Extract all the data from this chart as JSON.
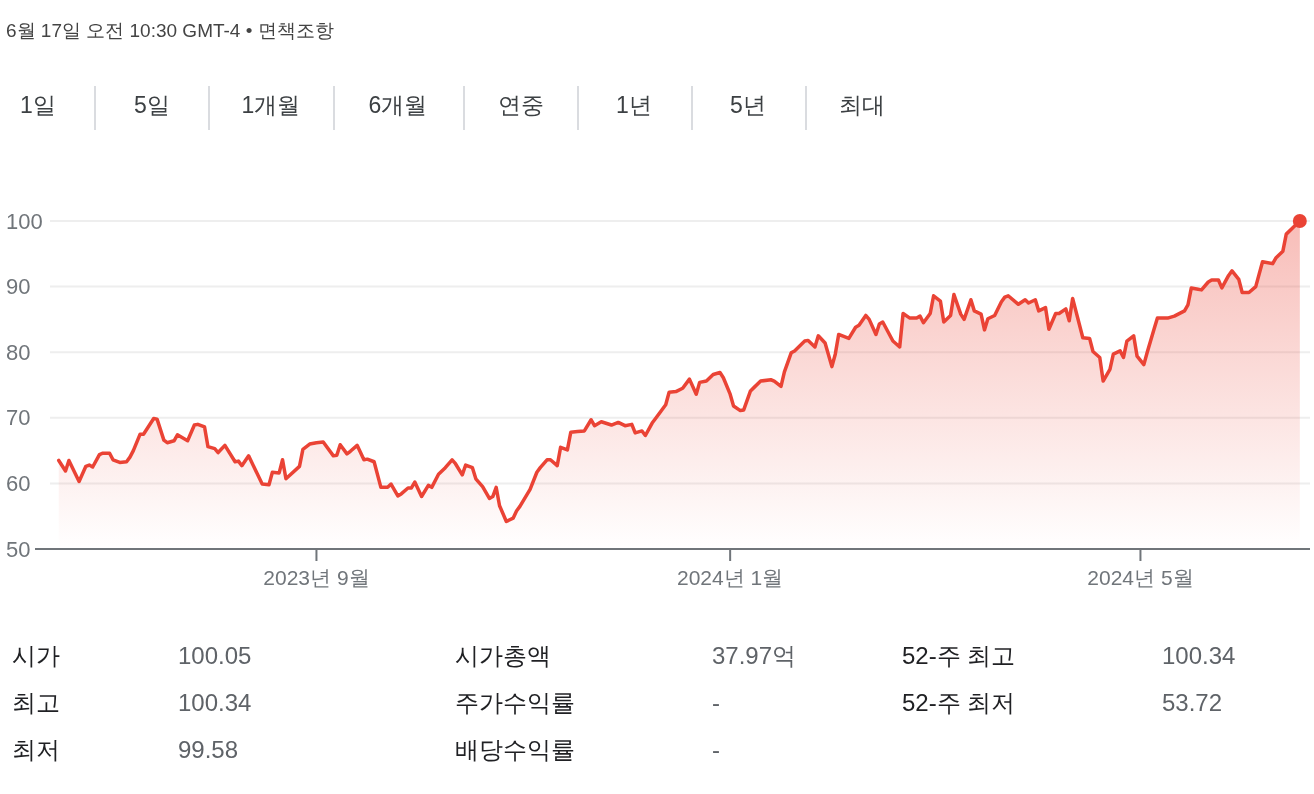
{
  "chart_data": {
    "type": "area",
    "x": [
      "2023-06-17",
      "2023-06-19",
      "2023-06-20",
      "2023-06-23",
      "2023-06-25",
      "2023-06-26",
      "2023-06-27",
      "2023-06-29",
      "2023-06-30",
      "2023-07-02",
      "2023-07-03",
      "2023-07-05",
      "2023-07-07",
      "2023-07-08",
      "2023-07-09",
      "2023-07-11",
      "2023-07-12",
      "2023-07-15",
      "2023-07-16",
      "2023-07-18",
      "2023-07-19",
      "2023-07-21",
      "2023-07-22",
      "2023-07-25",
      "2023-07-27",
      "2023-07-28",
      "2023-07-30",
      "2023-07-31",
      "2023-08-02",
      "2023-08-03",
      "2023-08-05",
      "2023-08-08",
      "2023-08-09",
      "2023-08-10",
      "2023-08-12",
      "2023-08-16",
      "2023-08-18",
      "2023-08-19",
      "2023-08-21",
      "2023-08-22",
      "2023-08-23",
      "2023-08-27",
      "2023-08-28",
      "2023-08-30",
      "2023-09-01",
      "2023-09-03",
      "2023-09-06",
      "2023-09-07",
      "2023-09-08",
      "2023-09-10",
      "2023-09-11",
      "2023-09-13",
      "2023-09-15",
      "2023-09-16",
      "2023-09-18",
      "2023-09-20",
      "2023-09-22",
      "2023-09-23",
      "2023-09-25",
      "2023-09-26",
      "2023-09-28",
      "2023-09-29",
      "2023-09-30",
      "2023-10-02",
      "2023-10-04",
      "2023-10-05",
      "2023-10-07",
      "2023-10-09",
      "2023-10-11",
      "2023-10-12",
      "2023-10-14",
      "2023-10-15",
      "2023-10-17",
      "2023-10-18",
      "2023-10-20",
      "2023-10-22",
      "2023-10-23",
      "2023-10-24",
      "2023-10-25",
      "2023-10-27",
      "2023-10-29",
      "2023-10-30",
      "2023-10-31",
      "2023-11-03",
      "2023-11-05",
      "2023-11-06",
      "2023-11-08",
      "2023-11-09",
      "2023-11-11",
      "2023-11-12",
      "2023-11-14",
      "2023-11-15",
      "2023-11-17",
      "2023-11-19",
      "2023-11-21",
      "2023-11-22",
      "2023-11-24",
      "2023-11-27",
      "2023-11-29",
      "2023-12-01",
      "2023-12-03",
      "2023-12-04",
      "2023-12-06",
      "2023-12-07",
      "2023-12-09",
      "2023-12-10",
      "2023-12-13",
      "2023-12-14",
      "2023-12-16",
      "2023-12-18",
      "2023-12-20",
      "2023-12-22",
      "2023-12-23",
      "2023-12-25",
      "2023-12-27",
      "2023-12-29",
      "2023-12-30",
      "2024-01-01",
      "2024-01-02",
      "2024-01-04",
      "2024-01-05",
      "2024-01-07",
      "2024-01-08",
      "2024-01-10",
      "2024-01-13",
      "2024-01-14",
      "2024-01-16",
      "2024-01-17",
      "2024-01-19",
      "2024-01-20",
      "2024-01-23",
      "2024-01-24",
      "2024-01-26",
      "2024-01-27",
      "2024-01-29",
      "2024-01-31",
      "2024-02-01",
      "2024-02-02",
      "2024-02-05",
      "2024-02-07",
      "2024-02-08",
      "2024-02-10",
      "2024-02-11",
      "2024-02-13",
      "2024-02-14",
      "2024-02-15",
      "2024-02-18",
      "2024-02-20",
      "2024-02-21",
      "2024-02-23",
      "2024-02-25",
      "2024-02-26",
      "2024-02-27",
      "2024-02-29",
      "2024-03-01",
      "2024-03-03",
      "2024-03-04",
      "2024-03-06",
      "2024-03-07",
      "2024-03-09",
      "2024-03-10",
      "2024-03-12",
      "2024-03-13",
      "2024-03-15",
      "2024-03-16",
      "2024-03-17",
      "2024-03-19",
      "2024-03-21",
      "2024-03-22",
      "2024-03-23",
      "2024-03-26",
      "2024-03-28",
      "2024-03-29",
      "2024-03-31",
      "2024-04-01",
      "2024-04-03",
      "2024-04-04",
      "2024-04-06",
      "2024-04-07",
      "2024-04-09",
      "2024-04-10",
      "2024-04-11",
      "2024-04-14",
      "2024-04-16",
      "2024-04-17",
      "2024-04-19",
      "2024-04-20",
      "2024-04-22",
      "2024-04-23",
      "2024-04-25",
      "2024-04-26",
      "2024-04-27",
      "2024-04-29",
      "2024-04-30",
      "2024-05-02",
      "2024-05-03",
      "2024-05-05",
      "2024-05-06",
      "2024-05-09",
      "2024-05-11",
      "2024-05-14",
      "2024-05-15",
      "2024-05-16",
      "2024-05-18",
      "2024-05-19",
      "2024-05-21",
      "2024-05-22",
      "2024-05-24",
      "2024-05-25",
      "2024-05-27",
      "2024-05-28",
      "2024-05-30",
      "2024-05-31",
      "2024-06-02",
      "2024-06-04",
      "2024-06-06",
      "2024-06-09",
      "2024-06-10",
      "2024-06-12",
      "2024-06-13",
      "2024-06-15",
      "2024-06-17"
    ],
    "series": [
      {
        "color": "#ea4335",
        "values": [
          63.5,
          61.9,
          63.5,
          60.3,
          62.6,
          62.8,
          62.5,
          64.4,
          64.6,
          64.6,
          63.6,
          63.2,
          63.3,
          64.0,
          65.0,
          67.5,
          67.5,
          69.9,
          69.8,
          66.6,
          66.2,
          66.5,
          67.4,
          66.5,
          68.9,
          69.0,
          68.6,
          65.6,
          65.3,
          64.7,
          65.8,
          63.3,
          63.4,
          62.7,
          64.2,
          59.9,
          59.8,
          61.7,
          61.6,
          63.6,
          60.7,
          62.6,
          65.2,
          66.0,
          66.2,
          66.3,
          64.2,
          64.3,
          65.9,
          64.5,
          64.9,
          65.8,
          63.6,
          63.7,
          63.3,
          59.4,
          59.4,
          59.9,
          58.1,
          58.4,
          59.3,
          59.3,
          60.2,
          58.0,
          59.7,
          59.4,
          61.4,
          62.4,
          63.6,
          63.0,
          61.3,
          62.8,
          62.4,
          60.7,
          59.5,
          57.7,
          58.0,
          59.4,
          56.6,
          54.2,
          54.7,
          55.8,
          56.5,
          59.1,
          61.7,
          62.4,
          63.6,
          63.6,
          62.7,
          65.5,
          65.1,
          67.8,
          67.9,
          68.0,
          69.7,
          68.8,
          69.4,
          68.9,
          69.3,
          68.8,
          69.0,
          67.7,
          68.0,
          67.3,
          69.2,
          69.9,
          72.0,
          73.9,
          74.0,
          74.5,
          75.9,
          73.6,
          75.4,
          75.6,
          76.6,
          76.9,
          76.1,
          73.6,
          71.8,
          71.1,
          71.2,
          74.1,
          74.6,
          75.6,
          75.8,
          75.6,
          74.8,
          77.0,
          79.9,
          80.2,
          81.7,
          81.8,
          80.8,
          82.5,
          81.4,
          77.8,
          79.7,
          82.7,
          82.1,
          83.8,
          84.1,
          85.6,
          85.0,
          82.7,
          84.3,
          84.6,
          81.7,
          80.8,
          85.9,
          85.2,
          85.2,
          85.5,
          84.5,
          85.9,
          88.6,
          87.8,
          84.6,
          85.6,
          88.8,
          85.8,
          85.0,
          88.0,
          86.3,
          85.8,
          83.4,
          85.1,
          85.6,
          87.7,
          88.4,
          88.6,
          87.3,
          88.0,
          87.5,
          88.0,
          86.3,
          86.8,
          83.5,
          85.9,
          85.9,
          86.6,
          84.8,
          88.2,
          82.2,
          82.1,
          80.1,
          79.2,
          75.6,
          77.4,
          79.7,
          80.2,
          79.2,
          81.7,
          82.5,
          79.4,
          78.1,
          80.0,
          83.5,
          85.2,
          85.2,
          85.5,
          86.3,
          87.2,
          89.8,
          89.6,
          89.5,
          90.7,
          91.0,
          91.0,
          89.8,
          91.7,
          92.4,
          91.1,
          89.1,
          89.1,
          90.0,
          93.8,
          93.5,
          94.4,
          95.4,
          98.0,
          99.0,
          100.0
        ]
      },
      {
        "type": "scatter",
        "color": "#ea4335",
        "x": [
          "2024-06-17"
        ],
        "values": [
          100.0
        ]
      }
    ],
    "xlim": [
      "2023-06-10",
      "2024-06-20"
    ],
    "xticks": [
      {
        "value": "2023-09-01",
        "label": "2023년 9월"
      },
      {
        "value": "2024-01-01",
        "label": "2024년 1월"
      },
      {
        "value": "2024-05-01",
        "label": "2024년 5월"
      }
    ],
    "ylim": [
      50,
      100
    ],
    "yticks": [
      50,
      60,
      70,
      80,
      90,
      100
    ],
    "grid": "y",
    "annotations": [
      "6월 17일 오전 10:30 GMT-4 • 면책조항",
      "1일",
      "5일",
      "1개월",
      "6개월",
      "연중",
      "1년",
      "5년",
      "최대",
      "시가",
      "100.05",
      "시가총액",
      "37.97억",
      "52-주 최고",
      "100.34",
      "최고",
      "100.34",
      "주가수익률",
      "-",
      "52-주 최저",
      "53.72",
      "최저",
      "99.58",
      "배당수익률",
      "-"
    ]
  }
}
